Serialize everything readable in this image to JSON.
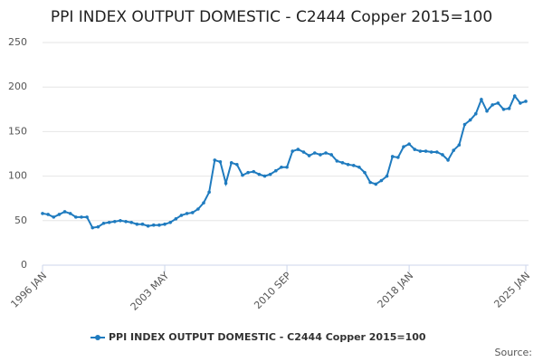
{
  "chart_data": {
    "type": "line",
    "title": "PPI INDEX OUTPUT DOMESTIC - C2444 Copper 2015=100",
    "categories": [
      "1996 JAN",
      null,
      null,
      null,
      null,
      null,
      null,
      null,
      null,
      null,
      null,
      null,
      null,
      null,
      null,
      null,
      null,
      null,
      null,
      null,
      null,
      null,
      "2003 MAY",
      null,
      null,
      null,
      null,
      null,
      null,
      null,
      null,
      null,
      null,
      null,
      null,
      null,
      null,
      null,
      null,
      null,
      null,
      null,
      null,
      null,
      "2010 SEP",
      null,
      null,
      null,
      null,
      null,
      null,
      null,
      null,
      null,
      null,
      null,
      null,
      null,
      null,
      null,
      null,
      null,
      null,
      null,
      null,
      null,
      "2018 JAN",
      null,
      null,
      null,
      null,
      null,
      null,
      null,
      null,
      null,
      null,
      null,
      null,
      null,
      null,
      null,
      null,
      null,
      null,
      null,
      null,
      "2025 JAN"
    ],
    "series": [
      {
        "name": "PPI INDEX OUTPUT DOMESTIC - C2444 Copper 2015=100",
        "color": "#1f7bbf",
        "values": [
          58,
          57,
          54,
          57,
          60,
          58,
          54,
          54,
          54,
          42,
          43,
          47,
          48,
          49,
          50,
          49,
          48,
          46,
          46,
          44,
          45,
          45,
          46,
          48,
          52,
          56,
          58,
          59,
          63,
          70,
          82,
          118,
          116,
          92,
          115,
          113,
          101,
          104,
          105,
          102,
          100,
          102,
          106,
          110,
          110,
          128,
          130,
          127,
          123,
          126,
          124,
          126,
          124,
          117,
          115,
          113,
          112,
          110,
          104,
          93,
          91,
          95,
          100,
          122,
          121,
          133,
          136,
          130,
          128,
          128,
          127,
          127,
          124,
          118,
          129,
          135,
          158,
          163,
          170,
          186,
          173,
          180,
          182,
          175,
          176,
          190,
          182,
          184
        ]
      }
    ],
    "ylim": [
      0,
      250
    ],
    "yticks": [
      0,
      50,
      100,
      150,
      200,
      250
    ],
    "grid": true,
    "source": "Source:"
  }
}
